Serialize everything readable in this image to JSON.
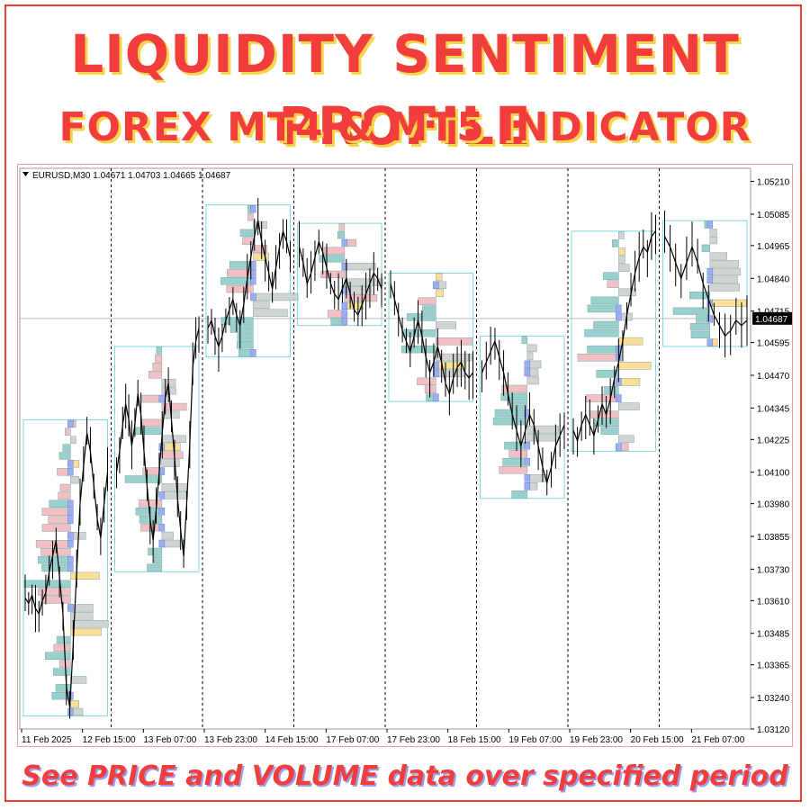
{
  "header": {
    "title": "LIQUIDITY SENTIMENT PROFILE",
    "subtitle": "FOREX MT4 & MT5 INDICATOR"
  },
  "footer": {
    "tagline": "See PRICE and VOLUME data over specified period"
  },
  "colors": {
    "headline": "#f23d3d",
    "headline_shadow": "#f7d54a",
    "bullish": "#8fcbc8",
    "bearish": "#f2b9bf",
    "neutral": "#cfcfcf",
    "poc": "#fddc8a",
    "dominant": "#9aaef0",
    "box_border": "#7fdcd8",
    "candles": "#000000",
    "current_price_bg": "#000000"
  },
  "chart_data": {
    "type": "line",
    "instrument_info": "EURUSD,M30  1.04671 1.04703 1.04665 1.04687",
    "current_price": "1.04687",
    "current_price_value": 1.04687,
    "ylim": [
      1.0312,
      1.0526
    ],
    "y_ticks": [
      "1.05210",
      "1.05085",
      "1.04965",
      "1.04840",
      "1.04715",
      "1.04595",
      "1.04470",
      "1.04345",
      "1.04225",
      "1.04100",
      "1.03980",
      "1.03855",
      "1.03730",
      "1.03610",
      "1.03485",
      "1.03365",
      "1.03240",
      "1.03120"
    ],
    "x_labels": [
      "11 Feb 2025",
      "12 Feb 15:00",
      "13 Feb 07:00",
      "13 Feb 23:00",
      "14 Feb 15:00",
      "17 Feb 07:00",
      "17 Feb 23:00",
      "18 Feb 15:00",
      "19 Feb 07:00",
      "19 Feb 23:00",
      "20 Feb 15:00",
      "21 Feb 07:00"
    ],
    "sessions": [
      {
        "low": 1.0317,
        "high": 1.043,
        "close_path": [
          1.0362,
          1.036,
          1.0363,
          1.0358,
          1.0356,
          1.0361,
          1.0364,
          1.0372,
          1.0378,
          1.0384,
          1.037,
          1.0356,
          1.0328,
          1.032,
          1.0345,
          1.0372,
          1.0398,
          1.0412,
          1.0425,
          1.0418,
          1.0405,
          1.0392,
          1.0385,
          1.0398,
          1.041
        ]
      },
      {
        "low": 1.0372,
        "high": 1.0458,
        "close_path": [
          1.041,
          1.0418,
          1.0428,
          1.0436,
          1.043,
          1.042,
          1.0428,
          1.044,
          1.0432,
          1.0418,
          1.0405,
          1.0392,
          1.0384,
          1.0396,
          1.041,
          1.0425,
          1.0438,
          1.0444,
          1.043,
          1.0416,
          1.04,
          1.0388,
          1.0378,
          1.0398,
          1.042,
          1.045,
          1.046,
          1.0465
        ]
      },
      {
        "low": 1.0454,
        "high": 1.0512,
        "close_path": [
          1.0465,
          1.0468,
          1.0462,
          1.0458,
          1.0462,
          1.0468,
          1.0472,
          1.0476,
          1.047,
          1.0466,
          1.0474,
          1.0484,
          1.0492,
          1.05,
          1.0506,
          1.0498,
          1.0492,
          1.0486,
          1.048,
          1.0488,
          1.0496,
          1.0502,
          1.0498,
          1.0492
        ]
      },
      {
        "low": 1.0466,
        "high": 1.0505,
        "close_path": [
          1.0496,
          1.049,
          1.0482,
          1.0486,
          1.0492,
          1.0498,
          1.0494,
          1.0488,
          1.0482,
          1.0478,
          1.0476,
          1.048,
          1.0484,
          1.0478,
          1.0472,
          1.047,
          1.0474,
          1.0478,
          1.0482,
          1.0486,
          1.0484,
          1.048
        ]
      },
      {
        "low": 1.0437,
        "high": 1.0486,
        "close_path": [
          1.0482,
          1.0476,
          1.047,
          1.0464,
          1.046,
          1.0456,
          1.0462,
          1.0468,
          1.0462,
          1.0454,
          1.0448,
          1.0452,
          1.0458,
          1.0452,
          1.0444,
          1.044,
          1.0446,
          1.045,
          1.0452,
          1.0448,
          1.0446,
          1.0448
        ]
      },
      {
        "low": 1.04,
        "high": 1.0462,
        "close_path": [
          1.0448,
          1.0452,
          1.0456,
          1.046,
          1.0454,
          1.0448,
          1.044,
          1.0432,
          1.0426,
          1.042,
          1.0426,
          1.0432,
          1.0428,
          1.042,
          1.0412,
          1.0406,
          1.0412,
          1.042,
          1.0424,
          1.0428
        ]
      },
      {
        "low": 1.0418,
        "high": 1.0502,
        "close_path": [
          1.0426,
          1.0422,
          1.0428,
          1.0432,
          1.0428,
          1.0424,
          1.043,
          1.0436,
          1.0432,
          1.0438,
          1.0446,
          1.0452,
          1.046,
          1.047,
          1.0478,
          1.0486,
          1.0492,
          1.0496,
          1.0494,
          1.05,
          1.0502
        ]
      },
      {
        "low": 1.0458,
        "high": 1.0506,
        "close_path": [
          1.05,
          1.0496,
          1.049,
          1.0484,
          1.049,
          1.0496,
          1.049,
          1.0482,
          1.0476,
          1.047,
          1.0466,
          1.0462,
          1.0464,
          1.0468,
          1.0466,
          1.0468
        ]
      }
    ]
  }
}
